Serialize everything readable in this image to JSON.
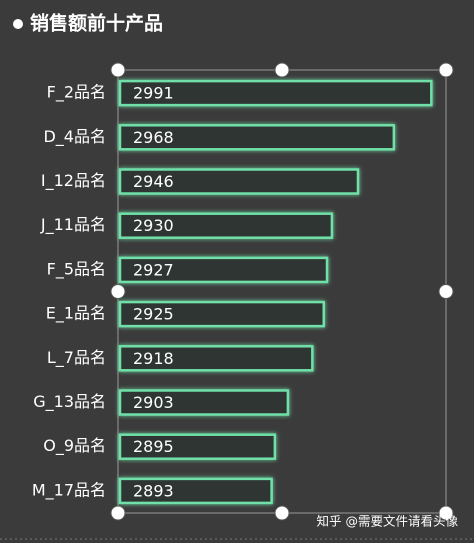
{
  "chart_data": {
    "type": "bar",
    "orientation": "horizontal",
    "title": "销售额前十产品",
    "categories": [
      "F_2品名",
      "D_4品名",
      "I_12品名",
      "J_11品名",
      "F_5品名",
      "E_1品名",
      "L_7品名",
      "G_13品名",
      "O_9品名",
      "M_17品名"
    ],
    "values": [
      2991,
      2968,
      2946,
      2930,
      2927,
      2925,
      2918,
      2903,
      2895,
      2893
    ],
    "color": "#6fe0a8",
    "xlim": [
      2800,
      3000
    ]
  },
  "watermark": "知乎 @需要文件请看头像"
}
